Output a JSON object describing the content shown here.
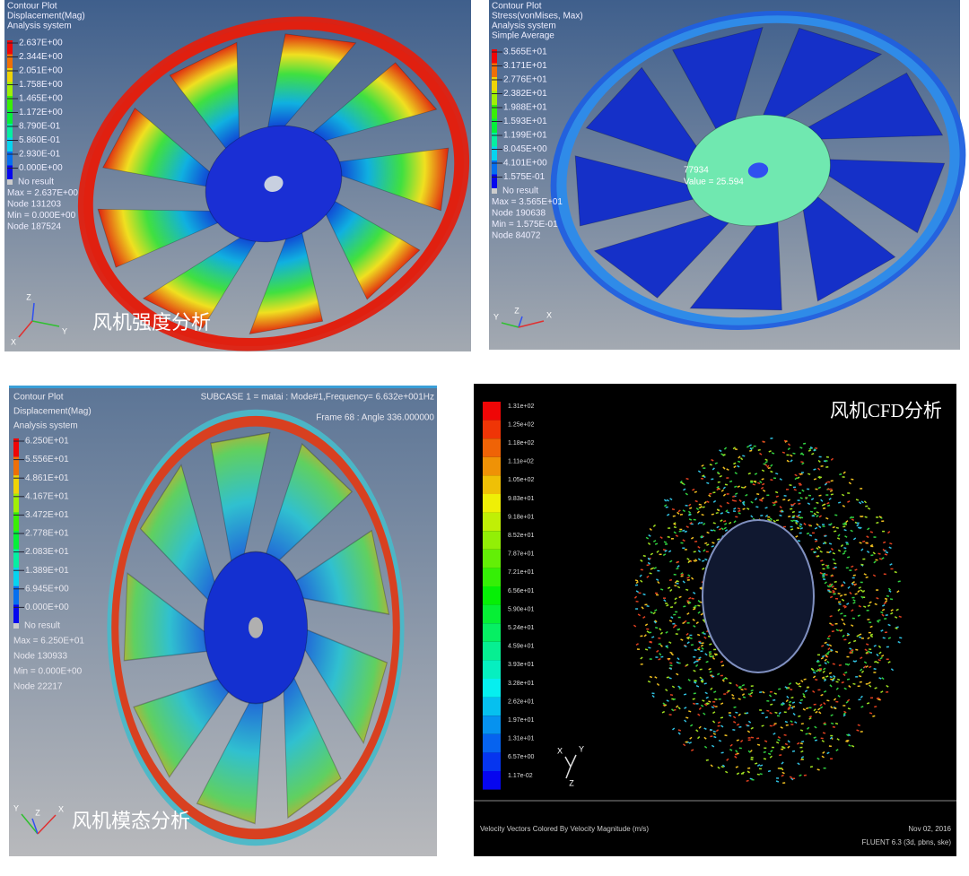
{
  "panels": [
    {
      "title_lines": [
        "Contour Plot",
        "Displacement(Mag)",
        "Analysis system"
      ],
      "legend": [
        "2.637E+00",
        "2.344E+00",
        "2.051E+00",
        "1.758E+00",
        "1.465E+00",
        "1.172E+00",
        "8.790E-01",
        "5.860E-01",
        "2.930E-01",
        "0.000E+00"
      ],
      "no_result": "No result",
      "stats": [
        "Max = 2.637E+00",
        "Node 131203",
        "Min = 0.000E+00",
        "Node 187524"
      ],
      "axes": [
        "Z",
        "Y",
        "X"
      ],
      "caption": "风机强度分析"
    },
    {
      "title_lines": [
        "Contour Plot",
        "Stress(vonMises, Max)",
        "Analysis system",
        "Simple Average"
      ],
      "legend": [
        "3.565E+01",
        "3.171E+01",
        "2.776E+01",
        "2.382E+01",
        "1.988E+01",
        "1.593E+01",
        "1.199E+01",
        "8.045E+00",
        "4.101E+00",
        "1.575E-01"
      ],
      "no_result": "No result",
      "stats": [
        "Max = 3.565E+01",
        "Node 190638",
        "Min = 1.575E-01",
        "Node 84072"
      ],
      "probe": [
        "77934",
        "Value = 25.594"
      ],
      "axes": [
        "Y",
        "Z",
        "X"
      ]
    },
    {
      "title_lines": [
        "Contour Plot",
        "Displacement(Mag)",
        "Analysis system"
      ],
      "header": [
        "SUBCASE 1 = matai : Mode#1,Frequency= 6.632e+001Hz",
        "Frame 68 : Angle 336.000000"
      ],
      "legend": [
        "6.250E+01",
        "5.556E+01",
        "4.861E+01",
        "4.167E+01",
        "3.472E+01",
        "2.778E+01",
        "2.083E+01",
        "1.389E+01",
        "6.945E+00",
        "0.000E+00"
      ],
      "no_result": "No result",
      "stats": [
        "Max = 6.250E+01",
        "Node 130933",
        "Min = 0.000E+00",
        "Node 22217"
      ],
      "axes": [
        "Y",
        "Z",
        "X"
      ],
      "caption": "风机模态分析"
    },
    {
      "legend": [
        "1.31e+02",
        "1.25e+02",
        "1.18e+02",
        "1.11e+02",
        "1.05e+02",
        "9.83e+01",
        "9.18e+01",
        "8.52e+01",
        "7.87e+01",
        "7.21e+01",
        "6.56e+01",
        "5.90e+01",
        "5.24e+01",
        "4.59e+01",
        "3.93e+01",
        "3.28e+01",
        "2.62e+01",
        "1.97e+01",
        "1.31e+01",
        "6.57e+00",
        "1.17e-02"
      ],
      "axes": [
        "X",
        "Y",
        "Z"
      ],
      "caption": "风机CFD分析",
      "footer": [
        "Velocity Vectors Colored By Velocity Magnitude (m/s)",
        "Nov 02, 2016",
        "FLUENT 6.3 (3d, pbns, ske)"
      ]
    }
  ]
}
